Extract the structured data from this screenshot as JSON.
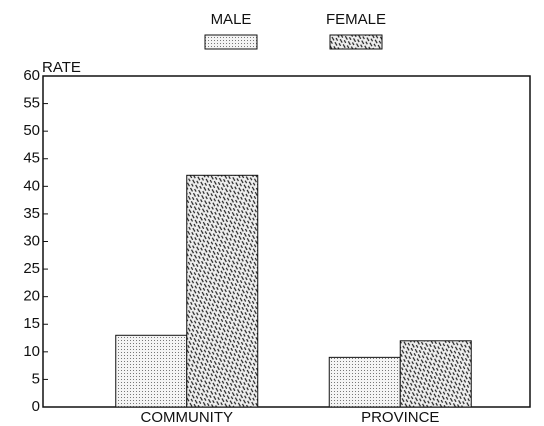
{
  "chart_data": {
    "type": "bar",
    "ylabel": "RATE",
    "categories": [
      "COMMUNITY",
      "PROVINCE"
    ],
    "series": [
      {
        "name": "MALE",
        "values": [
          13,
          9
        ]
      },
      {
        "name": "FEMALE",
        "values": [
          42,
          12
        ]
      }
    ],
    "ylim": [
      0,
      60
    ],
    "yticks": [
      0,
      5,
      10,
      15,
      20,
      25,
      30,
      35,
      40,
      45,
      50,
      55,
      60
    ]
  }
}
